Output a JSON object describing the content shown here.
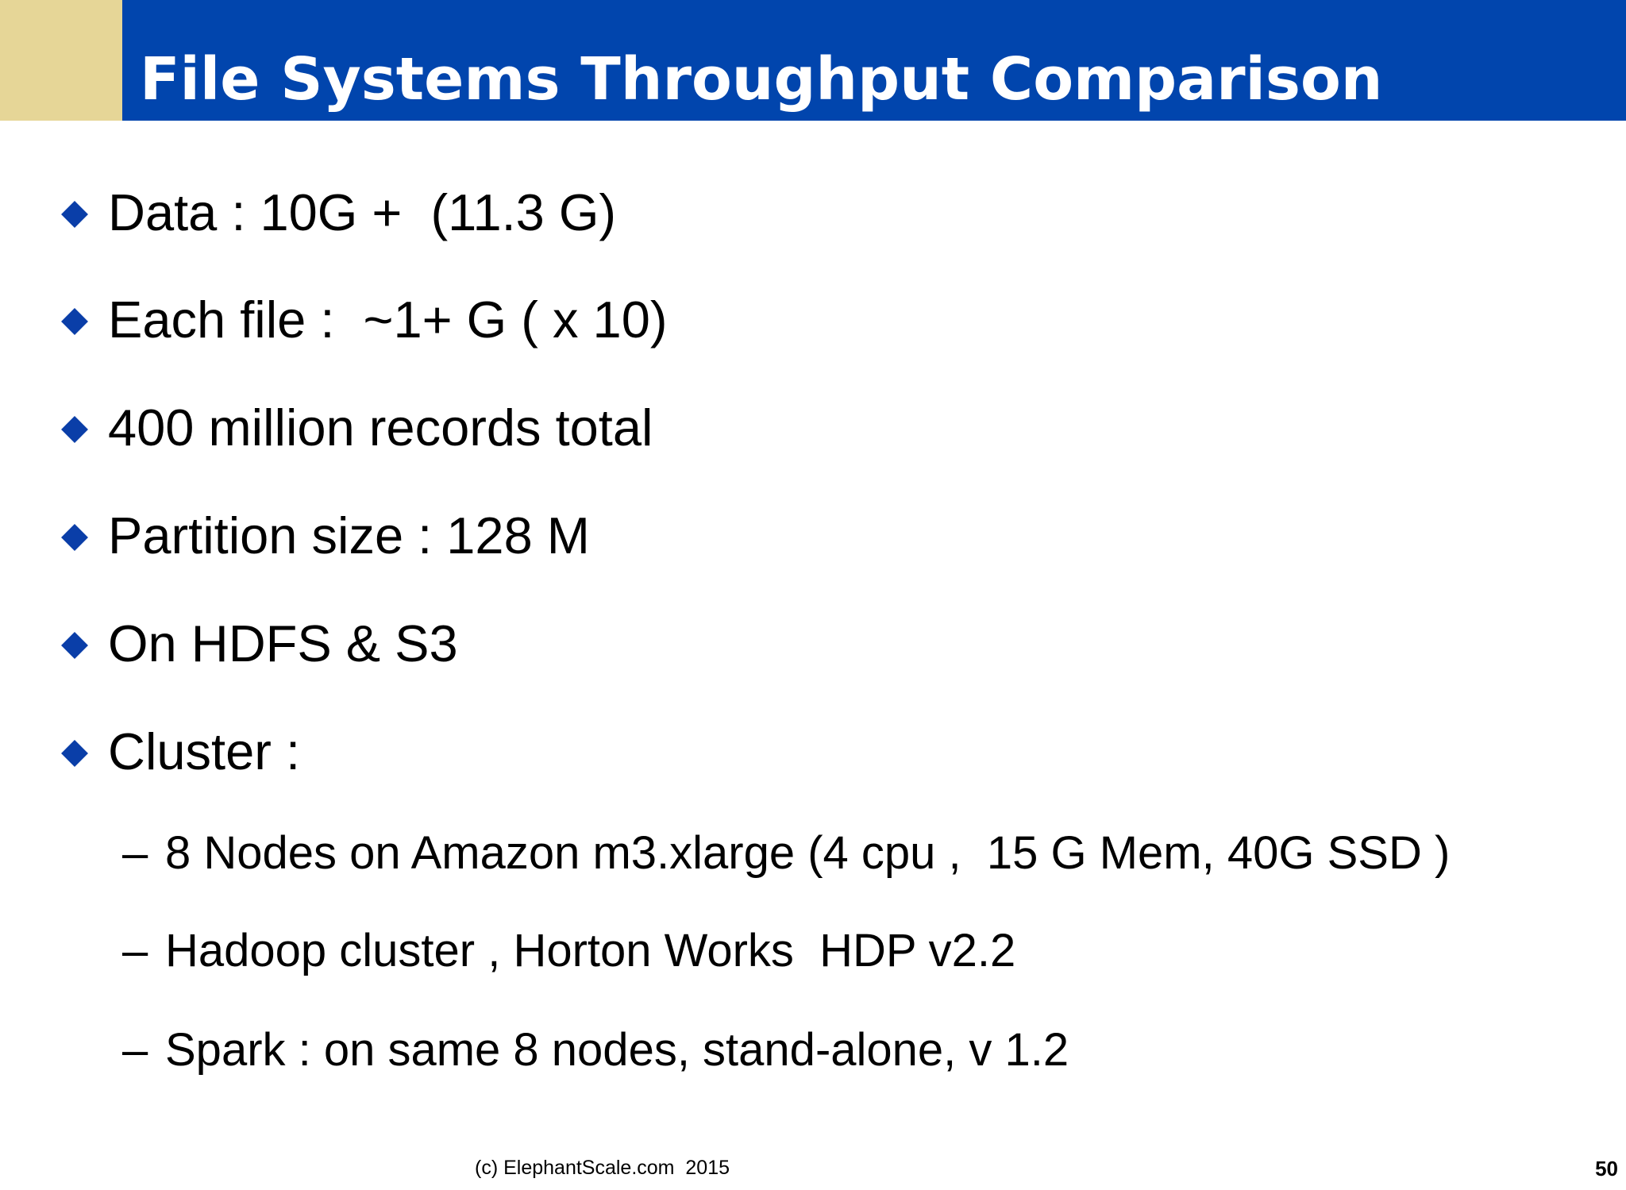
{
  "slide": {
    "title": "File Systems Throughput Comparison",
    "colors": {
      "title_bar": "#0145ad",
      "accent_block": "#e6d697",
      "bullet": "#0a3ea8"
    },
    "bullets": [
      "Data : 10G +  (11.3 G)",
      "Each file :  ~1+ G ( x 10)",
      "400 million records total",
      "Partition size : 128 M",
      "On HDFS & S3",
      "Cluster :"
    ],
    "sub_dash": "–",
    "sub_bullets": [
      "8 Nodes on Amazon m3.xlarge (4 cpu ,  15 G Mem, 40G SSD )",
      "Hadoop cluster , Horton Works  HDP v2.2",
      "Spark : on same 8 nodes, stand-alone, v 1.2"
    ],
    "footer": "(c) ElephantScale.com  2015",
    "page_number": "50"
  }
}
